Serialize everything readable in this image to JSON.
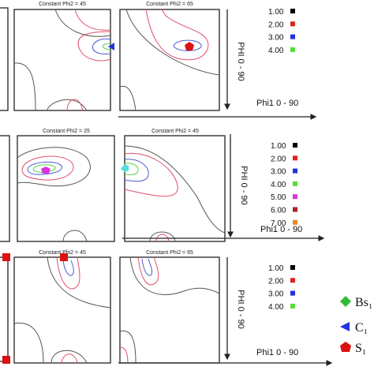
{
  "rows": [
    {
      "panels": [
        {
          "title": "Constant Phi2 = 45"
        },
        {
          "title": "Constant Phi2 = 65"
        }
      ],
      "y_axis_label": "PHI 0 - 90",
      "x_axis_label": "Phi1  0 - 90",
      "legend": [
        {
          "label": "1.00",
          "color": "#000000"
        },
        {
          "label": "2.00",
          "color": "#dd2222"
        },
        {
          "label": "3.00",
          "color": "#2233dd"
        },
        {
          "label": "4.00",
          "color": "#55dd33"
        }
      ]
    },
    {
      "panels": [
        {
          "title": "Constant Phi2 = 25"
        },
        {
          "title": "Constant Phi2 = 45"
        }
      ],
      "y_axis_label": "PHI 0 - 90",
      "x_axis_label": "Phi1  0 - 90",
      "legend": [
        {
          "label": "1.00",
          "color": "#000000"
        },
        {
          "label": "2.00",
          "color": "#dd2222"
        },
        {
          "label": "3.00",
          "color": "#2233dd"
        },
        {
          "label": "4.00",
          "color": "#55dd33"
        },
        {
          "label": "5.00",
          "color": "#dd33dd"
        },
        {
          "label": "6.00",
          "color": "#aa2222"
        },
        {
          "label": "7.00",
          "color": "#ee8822"
        }
      ]
    },
    {
      "panels": [
        {
          "title": "Constant Phi2 = 45"
        },
        {
          "title": "Constant Phi2 = 65"
        }
      ],
      "y_axis_label": "PHI 0 - 90",
      "x_axis_label": "Phi1  0 - 90",
      "legend": [
        {
          "label": "1.00",
          "color": "#000000"
        },
        {
          "label": "2.00",
          "color": "#dd2222"
        },
        {
          "label": "3.00",
          "color": "#2233dd"
        },
        {
          "label": "4.00",
          "color": "#55dd33"
        }
      ]
    }
  ],
  "markers": [
    "Bs₁",
    "C₁",
    "S₁"
  ]
}
